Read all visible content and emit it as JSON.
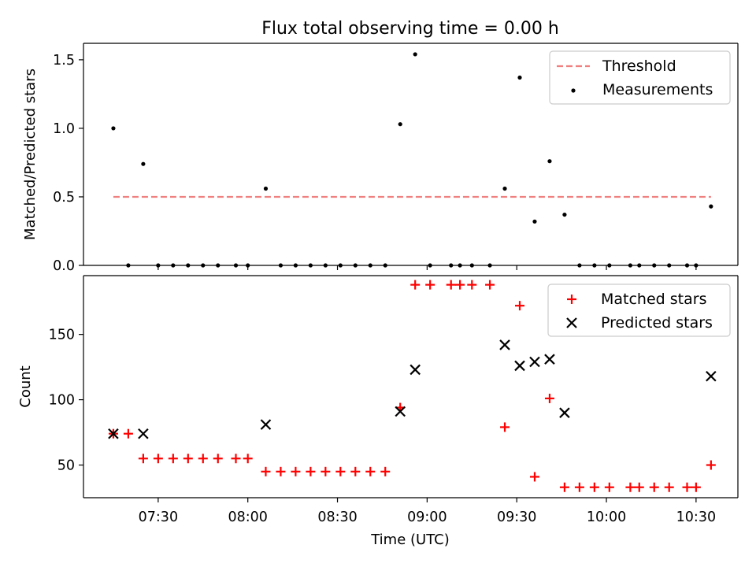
{
  "figure": {
    "title": "Flux total observing time = 0.00 h"
  },
  "chart_data": [
    {
      "type": "scatter",
      "title": "Flux total observing time = 0.00 h",
      "xlabel": "",
      "ylabel": "Matched/Predicted stars",
      "xlim": [
        "07:05",
        "10:44"
      ],
      "ylim": [
        0,
        1.62
      ],
      "yticks": [
        0.0,
        0.5,
        1.0,
        1.5
      ],
      "ytick_labels": [
        "0.0",
        "0.5",
        "1.0",
        "1.5"
      ],
      "legend_position": "top-right",
      "series": [
        {
          "name": "Threshold",
          "kind": "dashed-line",
          "color": "#f08080",
          "x": [
            "07:15",
            "10:35"
          ],
          "y": [
            0.5,
            0.5
          ]
        },
        {
          "name": "Measurements",
          "kind": "dot",
          "color": "#000000",
          "x": [
            "07:15",
            "07:20",
            "07:25",
            "07:30",
            "07:35",
            "07:40",
            "07:45",
            "07:50",
            "07:56",
            "08:00",
            "08:06",
            "08:11",
            "08:16",
            "08:21",
            "08:26",
            "08:31",
            "08:36",
            "08:41",
            "08:46",
            "08:51",
            "08:56",
            "09:01",
            "09:08",
            "09:11",
            "09:15",
            "09:21",
            "09:26",
            "09:31",
            "09:36",
            "09:41",
            "09:46",
            "09:51",
            "09:56",
            "10:01",
            "10:08",
            "10:11",
            "10:16",
            "10:21",
            "10:27",
            "10:30",
            "10:35"
          ],
          "y": [
            1.0,
            0.0,
            0.74,
            0.0,
            0.0,
            0.0,
            0.0,
            0.0,
            0.0,
            0.0,
            0.56,
            0.0,
            0.0,
            0.0,
            0.0,
            0.0,
            0.0,
            0.0,
            0.0,
            1.03,
            1.54,
            0.0,
            0.0,
            0.0,
            0.0,
            0.0,
            0.56,
            1.37,
            0.32,
            0.76,
            0.37,
            0.0,
            0.0,
            0.0,
            0.0,
            0.0,
            0.0,
            0.0,
            0.0,
            0.0,
            0.43
          ]
        }
      ]
    },
    {
      "type": "scatter",
      "title": "",
      "xlabel": "Time (UTC)",
      "ylabel": "Count",
      "xlim": [
        "07:05",
        "10:44"
      ],
      "ylim": [
        25,
        195
      ],
      "yticks": [
        50,
        100,
        150
      ],
      "ytick_labels": [
        "50",
        "100",
        "150"
      ],
      "xticks": [
        "07:30",
        "08:00",
        "08:30",
        "09:00",
        "09:30",
        "10:00",
        "10:30"
      ],
      "xtick_labels": [
        "07:30",
        "08:00",
        "08:30",
        "09:00",
        "09:30",
        "10:00",
        "10:30"
      ],
      "legend_position": "top-right",
      "series": [
        {
          "name": "Matched stars",
          "kind": "plus",
          "color": "#ff0000",
          "x": [
            "07:15",
            "07:20",
            "07:25",
            "07:30",
            "07:35",
            "07:40",
            "07:45",
            "07:50",
            "07:56",
            "08:00",
            "08:06",
            "08:11",
            "08:16",
            "08:21",
            "08:26",
            "08:31",
            "08:36",
            "08:41",
            "08:46",
            "08:51",
            "08:56",
            "09:01",
            "09:08",
            "09:11",
            "09:15",
            "09:21",
            "09:26",
            "09:31",
            "09:36",
            "09:41",
            "09:46",
            "09:51",
            "09:56",
            "10:01",
            "10:08",
            "10:11",
            "10:16",
            "10:21",
            "10:27",
            "10:30",
            "10:35"
          ],
          "y": [
            74,
            74,
            55,
            55,
            55,
            55,
            55,
            55,
            55,
            55,
            45,
            45,
            45,
            45,
            45,
            45,
            45,
            45,
            45,
            94,
            188,
            188,
            188,
            188,
            188,
            188,
            79,
            172,
            41,
            101,
            33,
            33,
            33,
            33,
            33,
            33,
            33,
            33,
            33,
            33,
            50
          ]
        },
        {
          "name": "Predicted stars",
          "kind": "cross",
          "color": "#000000",
          "x": [
            "07:15",
            "07:25",
            "08:06",
            "08:51",
            "08:56",
            "09:26",
            "09:31",
            "09:36",
            "09:41",
            "09:46",
            "10:35"
          ],
          "y": [
            74,
            74,
            81,
            91,
            123,
            142,
            126,
            129,
            131,
            90,
            118
          ]
        }
      ]
    }
  ]
}
